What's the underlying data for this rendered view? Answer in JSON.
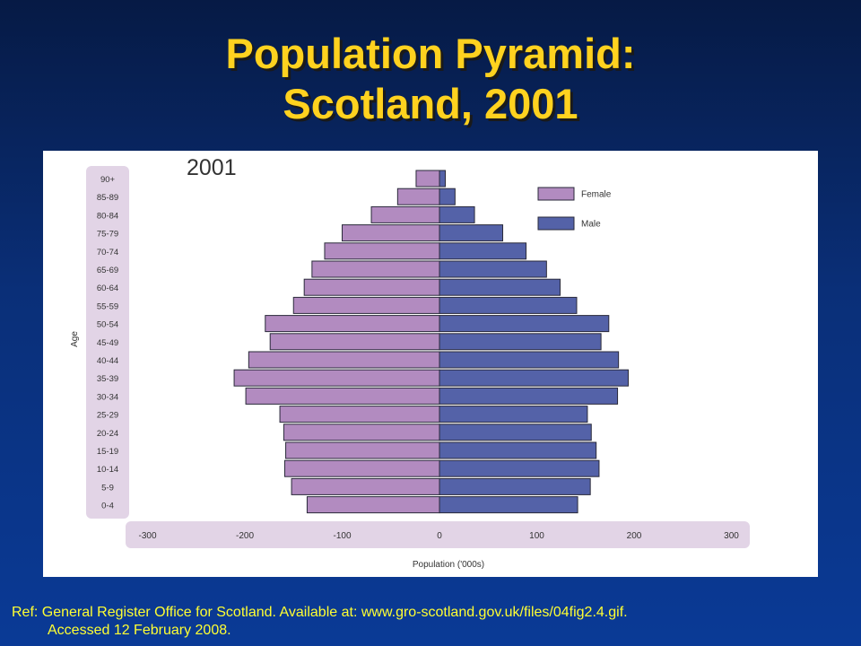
{
  "slide": {
    "title_line1": "Population Pyramid:",
    "title_line2": "Scotland, 2001",
    "ref_line1": "Ref: General Register Office for Scotland. Available at: www.gro-scotland.gov.uk/files/04fig2.4.gif.",
    "ref_line2": "Accessed 12 February 2008."
  },
  "chart_data": {
    "type": "bar",
    "orientation": "horizontal-pyramid",
    "year_label": "2001",
    "xlabel": "Population ('000s)",
    "ylabel": "Age",
    "xlim": [
      -300,
      300
    ],
    "x_ticks": [
      -300,
      -200,
      -100,
      0,
      100,
      200,
      300
    ],
    "categories": [
      "90+",
      "85-89",
      "80-84",
      "75-79",
      "70-74",
      "65-69",
      "60-64",
      "55-59",
      "50-54",
      "45-49",
      "40-44",
      "35-39",
      "30-34",
      "25-29",
      "20-24",
      "15-19",
      "10-14",
      "5-9",
      "0-4"
    ],
    "series": [
      {
        "name": "Female",
        "color": "#b28bc0",
        "values": [
          24,
          43,
          70,
          100,
          118,
          131,
          139,
          150,
          179,
          174,
          196,
          211,
          199,
          164,
          160,
          158,
          159,
          152,
          136
        ]
      },
      {
        "name": "Male",
        "color": "#5462a8",
        "values": [
          6,
          16,
          36,
          65,
          89,
          110,
          124,
          141,
          174,
          166,
          184,
          194,
          183,
          152,
          156,
          161,
          164,
          155,
          142
        ]
      }
    ],
    "legend_position": "top-right",
    "grid": false
  }
}
